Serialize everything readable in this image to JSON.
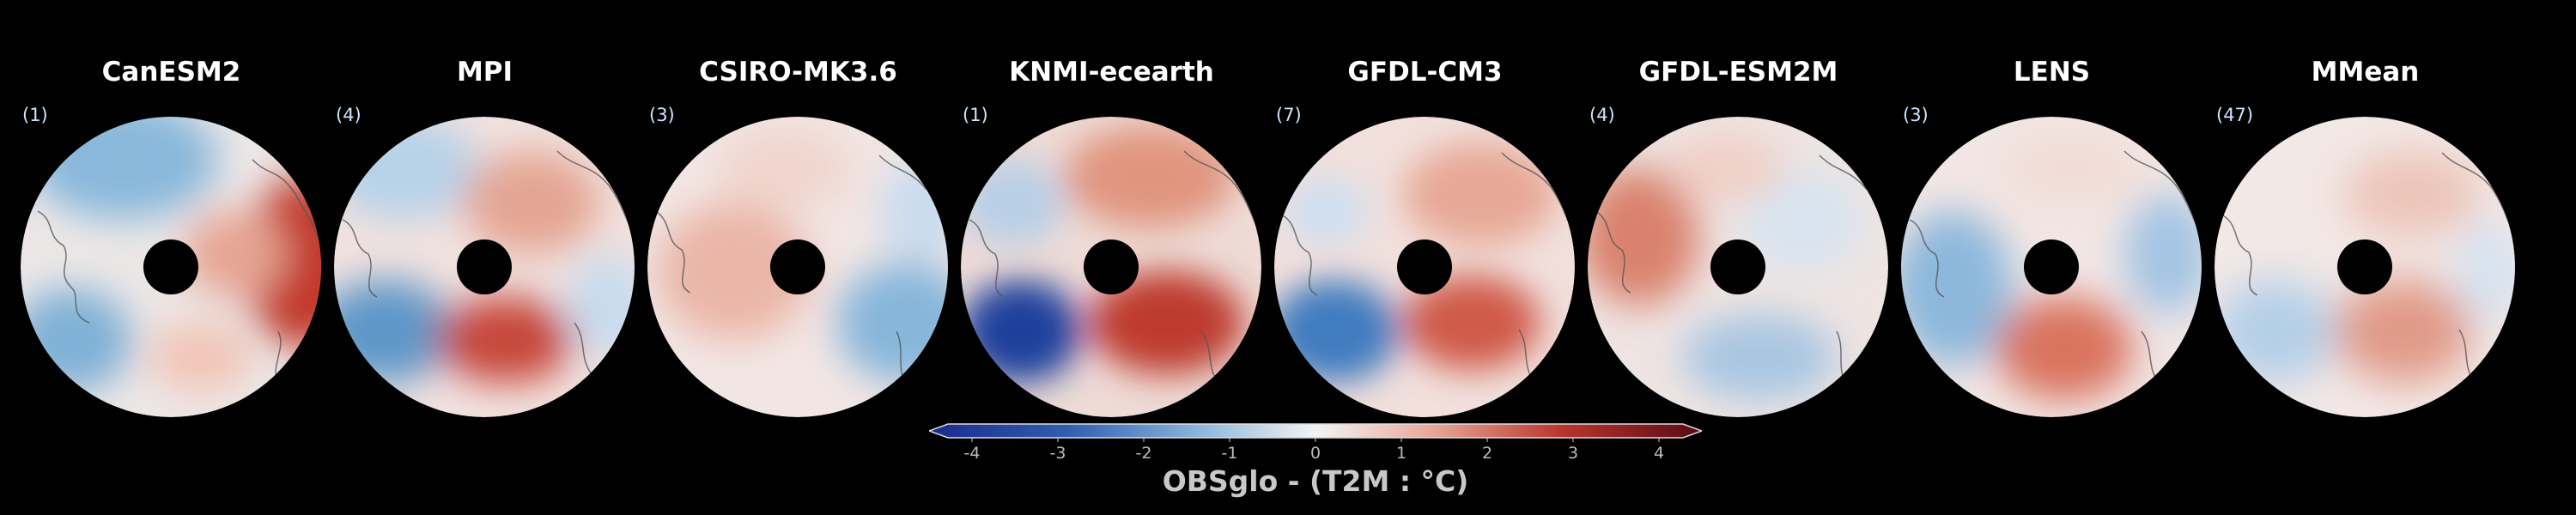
{
  "panels": [
    {
      "title": "CanESM2",
      "count": "(1)"
    },
    {
      "title": "MPI",
      "count": "(4)"
    },
    {
      "title": "CSIRO-MK3.6",
      "count": "(3)"
    },
    {
      "title": "KNMI-ecearth",
      "count": "(1)"
    },
    {
      "title": "GFDL-CM3",
      "count": "(7)"
    },
    {
      "title": "GFDL-ESM2M",
      "count": "(4)"
    },
    {
      "title": "LENS",
      "count": "(3)"
    },
    {
      "title": "MMean",
      "count": "(47)"
    }
  ],
  "colorbar": {
    "ticks": [
      "-4",
      "-3",
      "-2",
      "-1",
      "0",
      "1",
      "2",
      "3",
      "4"
    ],
    "label": "OBSglo - (T2M : °C)",
    "colors": {
      "min": "#1a2a8c",
      "mid": "#f4f4f4",
      "max": "#5a0a16"
    }
  }
}
